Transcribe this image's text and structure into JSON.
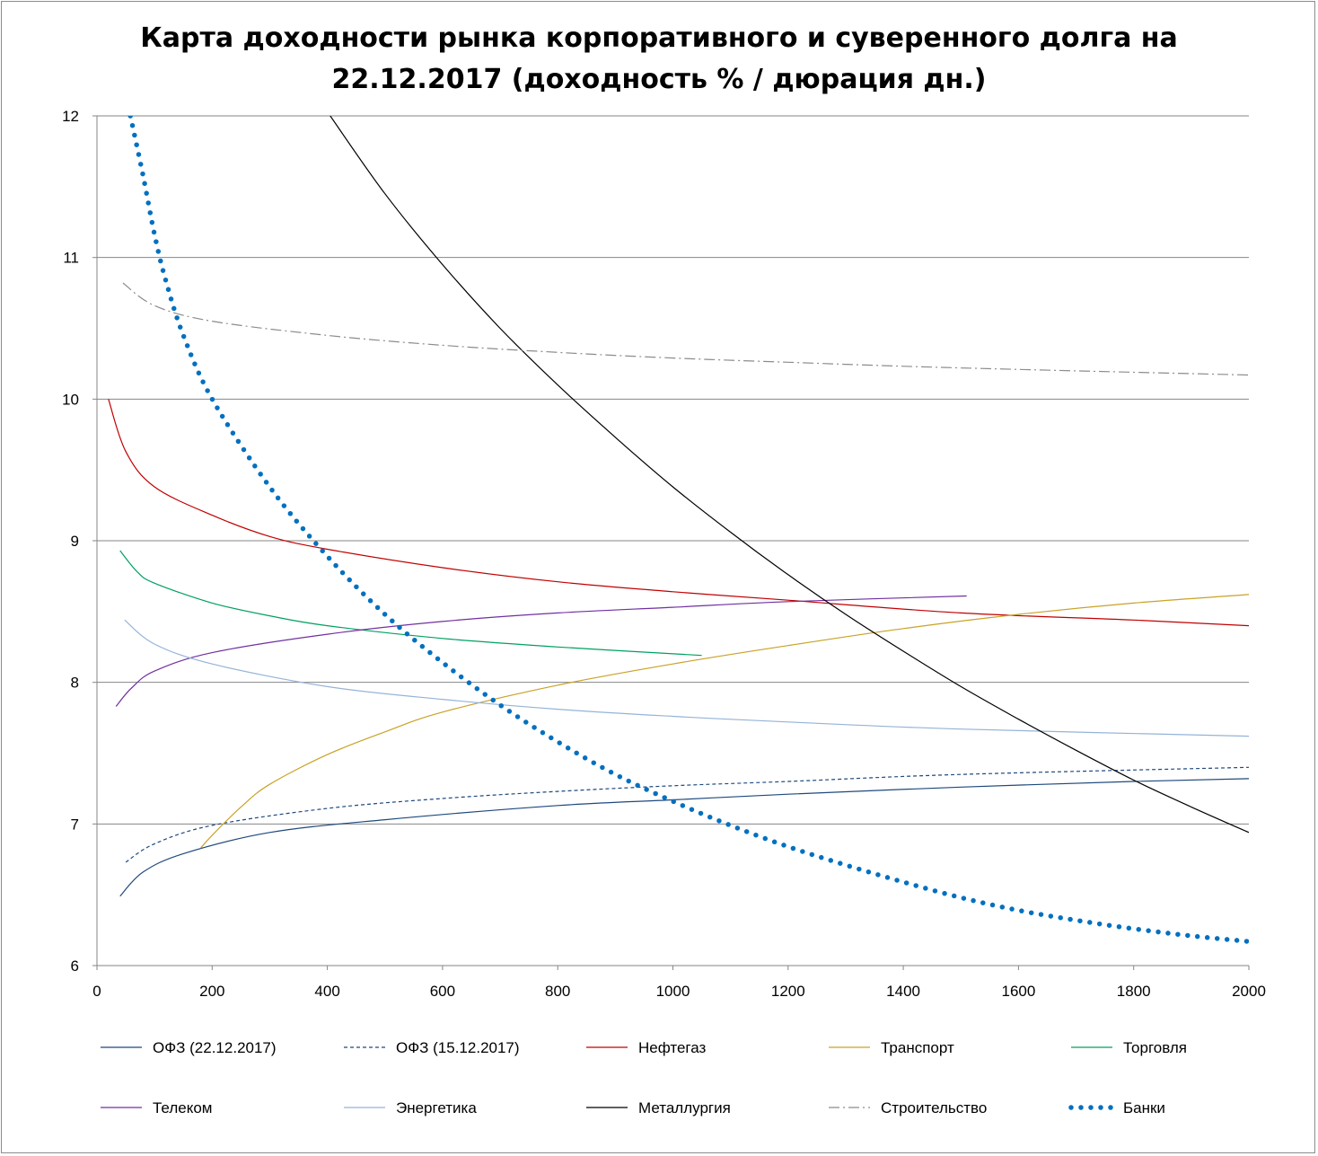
{
  "chart_data": {
    "type": "line",
    "title_line1": "Карта доходности рынка корпоративного и суверенного долга на",
    "title_line2": "22.12.2017 (доходность % / дюрация дн.)",
    "xlabel": "",
    "ylabel": "",
    "xlim": [
      0,
      2000
    ],
    "ylim": [
      6,
      12
    ],
    "x_ticks": [
      0,
      200,
      400,
      600,
      800,
      1000,
      1200,
      1400,
      1600,
      1800,
      2000
    ],
    "y_ticks": [
      6,
      7,
      8,
      9,
      10,
      11,
      12
    ],
    "grid": "horizontal",
    "legend_position": "bottom",
    "series": [
      {
        "name": "ОФЗ (22.12.2017)",
        "color": "#1f497d",
        "style": "solid",
        "points": [
          [
            40,
            6.49
          ],
          [
            80,
            6.66
          ],
          [
            150,
            6.79
          ],
          [
            300,
            6.94
          ],
          [
            500,
            7.03
          ],
          [
            800,
            7.13
          ],
          [
            1000,
            7.17
          ],
          [
            1200,
            7.21
          ],
          [
            1500,
            7.26
          ],
          [
            1800,
            7.3
          ],
          [
            2000,
            7.32
          ]
        ]
      },
      {
        "name": "ОФЗ (15.12.2017)",
        "color": "#1f497d",
        "style": "dash",
        "points": [
          [
            50,
            6.73
          ],
          [
            100,
            6.86
          ],
          [
            200,
            6.99
          ],
          [
            400,
            7.11
          ],
          [
            600,
            7.18
          ],
          [
            800,
            7.23
          ],
          [
            1000,
            7.27
          ],
          [
            1200,
            7.3
          ],
          [
            1500,
            7.35
          ],
          [
            2000,
            7.4
          ]
        ]
      },
      {
        "name": "Нефтегаз",
        "color": "#c00000",
        "style": "solid",
        "points": [
          [
            20,
            10.0
          ],
          [
            50,
            9.63
          ],
          [
            100,
            9.38
          ],
          [
            200,
            9.18
          ],
          [
            300,
            9.03
          ],
          [
            400,
            8.94
          ],
          [
            600,
            8.81
          ],
          [
            800,
            8.71
          ],
          [
            1000,
            8.64
          ],
          [
            1200,
            8.58
          ],
          [
            1500,
            8.49
          ],
          [
            1800,
            8.44
          ],
          [
            2000,
            8.4
          ]
        ]
      },
      {
        "name": "Транспорт",
        "color": "#c9a227",
        "style": "solid",
        "points": [
          [
            180,
            6.83
          ],
          [
            200,
            6.92
          ],
          [
            250,
            7.12
          ],
          [
            300,
            7.28
          ],
          [
            400,
            7.49
          ],
          [
            500,
            7.65
          ],
          [
            600,
            7.79
          ],
          [
            800,
            7.98
          ],
          [
            1000,
            8.13
          ],
          [
            1200,
            8.26
          ],
          [
            1400,
            8.38
          ],
          [
            1600,
            8.48
          ],
          [
            1800,
            8.56
          ],
          [
            2000,
            8.62
          ]
        ]
      },
      {
        "name": "Торговля",
        "color": "#00a060",
        "style": "solid",
        "points": [
          [
            40,
            8.93
          ],
          [
            70,
            8.78
          ],
          [
            100,
            8.7
          ],
          [
            200,
            8.56
          ],
          [
            300,
            8.47
          ],
          [
            400,
            8.4
          ],
          [
            600,
            8.31
          ],
          [
            800,
            8.25
          ],
          [
            1050,
            8.19
          ]
        ]
      },
      {
        "name": "Телеком",
        "color": "#7030a0",
        "style": "solid",
        "points": [
          [
            33,
            7.83
          ],
          [
            60,
            7.96
          ],
          [
            100,
            8.08
          ],
          [
            200,
            8.21
          ],
          [
            400,
            8.34
          ],
          [
            600,
            8.43
          ],
          [
            800,
            8.49
          ],
          [
            1000,
            8.53
          ],
          [
            1200,
            8.57
          ],
          [
            1510,
            8.61
          ]
        ]
      },
      {
        "name": "Энергетика",
        "color": "#95b3d7",
        "style": "solid",
        "points": [
          [
            48,
            8.44
          ],
          [
            100,
            8.27
          ],
          [
            200,
            8.13
          ],
          [
            400,
            7.97
          ],
          [
            600,
            7.88
          ],
          [
            800,
            7.81
          ],
          [
            1000,
            7.76
          ],
          [
            1200,
            7.72
          ],
          [
            1500,
            7.67
          ],
          [
            2000,
            7.62
          ]
        ]
      },
      {
        "name": "Металлургия",
        "color": "#000000",
        "style": "solid",
        "points": [
          [
            405,
            12.0
          ],
          [
            500,
            11.45
          ],
          [
            600,
            10.95
          ],
          [
            700,
            10.5
          ],
          [
            800,
            10.1
          ],
          [
            900,
            9.73
          ],
          [
            1000,
            9.38
          ],
          [
            1100,
            9.06
          ],
          [
            1200,
            8.76
          ],
          [
            1300,
            8.48
          ],
          [
            1400,
            8.22
          ],
          [
            1500,
            7.97
          ],
          [
            1600,
            7.74
          ],
          [
            1700,
            7.52
          ],
          [
            1800,
            7.31
          ],
          [
            1900,
            7.12
          ],
          [
            2000,
            6.94
          ]
        ]
      },
      {
        "name": "Строительство",
        "color": "#8c8c8c",
        "style": "dashdot",
        "points": [
          [
            45,
            10.82
          ],
          [
            100,
            10.66
          ],
          [
            200,
            10.55
          ],
          [
            400,
            10.45
          ],
          [
            600,
            10.38
          ],
          [
            800,
            10.33
          ],
          [
            1000,
            10.29
          ],
          [
            1200,
            10.26
          ],
          [
            1500,
            10.22
          ],
          [
            2000,
            10.17
          ]
        ]
      },
      {
        "name": "Банки",
        "color": "#0070c0",
        "style": "dots",
        "points": [
          [
            58,
            12.0
          ],
          [
            80,
            11.58
          ],
          [
            100,
            11.16
          ],
          [
            120,
            10.83
          ],
          [
            150,
            10.45
          ],
          [
            200,
            10.0
          ],
          [
            300,
            9.38
          ],
          [
            400,
            8.89
          ],
          [
            500,
            8.48
          ],
          [
            600,
            8.14
          ],
          [
            700,
            7.84
          ],
          [
            800,
            7.58
          ],
          [
            900,
            7.35
          ],
          [
            1000,
            7.16
          ],
          [
            1100,
            6.99
          ],
          [
            1200,
            6.84
          ],
          [
            1300,
            6.71
          ],
          [
            1400,
            6.59
          ],
          [
            1500,
            6.48
          ],
          [
            1600,
            6.39
          ],
          [
            1700,
            6.32
          ],
          [
            1800,
            6.26
          ],
          [
            1900,
            6.21
          ],
          [
            2000,
            6.17
          ]
        ]
      }
    ]
  }
}
